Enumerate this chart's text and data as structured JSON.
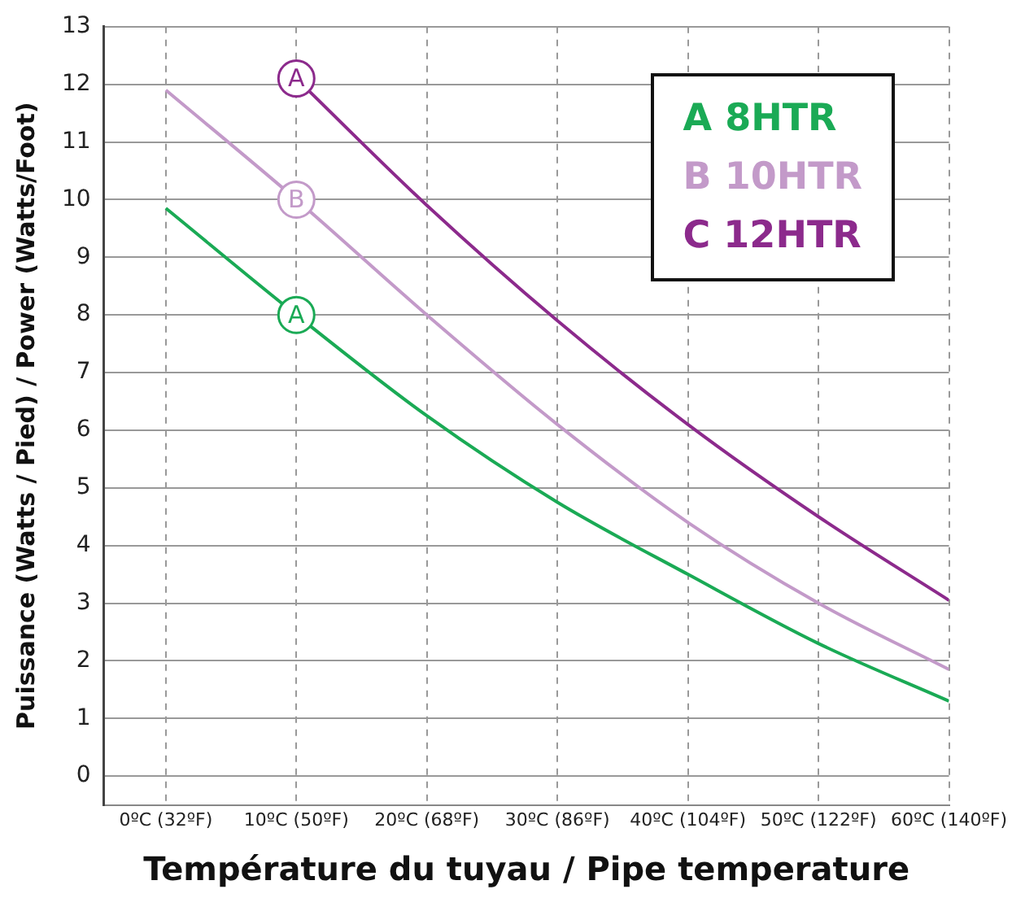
{
  "chart_data": {
    "type": "line",
    "xlabel": "Température du tuyau / Pipe temperature",
    "ylabel": "Puissance (Watts / Pied) / Power (Watts/Foot)",
    "categories": [
      "0ºC (32ºF)",
      "10ºC (50ºF)",
      "20ºC (68ºF)",
      "30ºC (86ºF)",
      "40ºC (104ºF)",
      "50ºC (122ºF)",
      "60ºC (140ºF)"
    ],
    "ylim": [
      -0.5,
      13
    ],
    "yticks": [
      0,
      1,
      2,
      3,
      4,
      5,
      6,
      7,
      8,
      9,
      10,
      11,
      12,
      13
    ],
    "series": [
      {
        "name": "A 8HTR",
        "color": "#1aaa55",
        "values": [
          9.85,
          8.0,
          6.25,
          4.75,
          3.5,
          2.3,
          1.3
        ]
      },
      {
        "name": "B 10HTR",
        "color": "#c39ac9",
        "values": [
          11.9,
          10.0,
          8.0,
          6.1,
          4.4,
          3.0,
          1.85
        ]
      },
      {
        "name": "C 12HTR",
        "color": "#8c2a8c",
        "values": [
          null,
          12.1,
          9.9,
          7.9,
          6.1,
          4.5,
          3.05
        ]
      }
    ],
    "annotations": [
      {
        "text": "A",
        "x": "10ºC (50ºF)",
        "y": 12.1
      },
      {
        "text": "B",
        "x": "10ºC (50ºF)",
        "y": 10.0
      },
      {
        "text": "A",
        "x": "10ºC (50ºF)",
        "y": 8.0
      }
    ],
    "grid": true,
    "legend": "top right",
    "marker": "none",
    "line_style": "solid"
  }
}
